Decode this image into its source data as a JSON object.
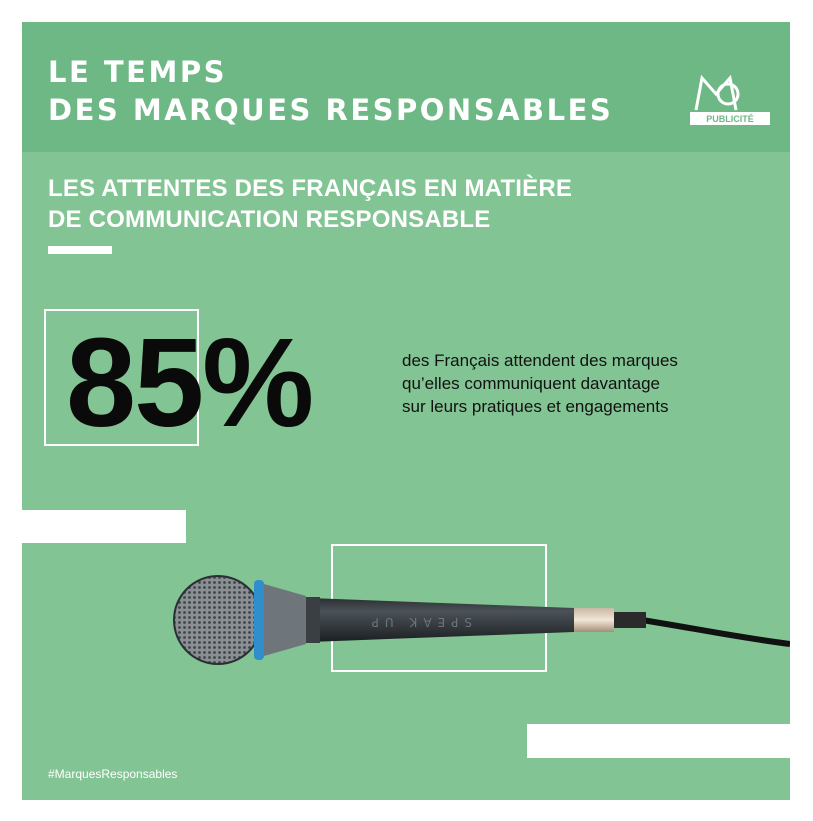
{
  "header": {
    "title_line1": "LE TEMPS",
    "title_line2": "DES MARQUES RESPONSABLES",
    "logo_text": "PUBLICITÉ"
  },
  "subtitle": {
    "line1": "LES ATTENTES DES FRANÇAIS EN MATIÈRE",
    "line2": "DE COMMUNICATION RESPONSABLE"
  },
  "stat": {
    "value": "85%",
    "description": [
      "des Français attendent des marques",
      "qu’elles communiquent davantage",
      "sur leurs pratiques et engagements"
    ]
  },
  "microphone": {
    "engraving": "SPEAK UP"
  },
  "footer": {
    "hashtag": "#MarquesResponsables"
  },
  "colors": {
    "background": "#82c493",
    "header": "#6db884",
    "accent_text": "#ffffff",
    "stat_text": "#0a0a0a"
  }
}
